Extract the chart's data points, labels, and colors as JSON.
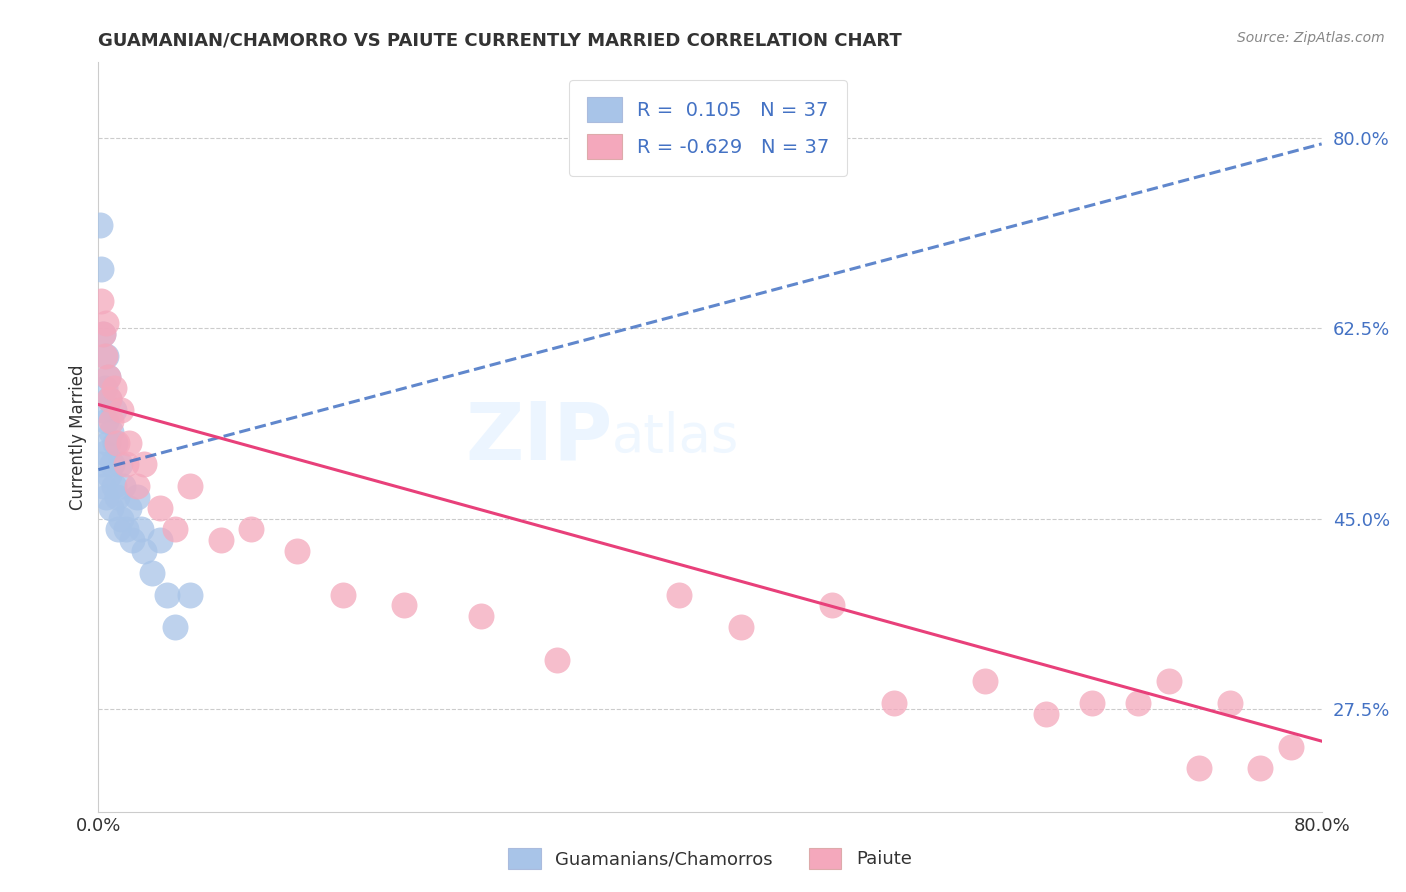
{
  "title": "GUAMANIAN/CHAMORRO VS PAIUTE CURRENTLY MARRIED CORRELATION CHART",
  "source": "Source: ZipAtlas.com",
  "xlabel_blue": "Guamanians/Chamorros",
  "xlabel_pink": "Paiute",
  "ylabel": "Currently Married",
  "xlim": [
    0.0,
    0.8
  ],
  "ylim": [
    0.18,
    0.87
  ],
  "yticks": [
    0.275,
    0.45,
    0.625,
    0.8
  ],
  "ytick_labels": [
    "27.5%",
    "45.0%",
    "62.5%",
    "80.0%"
  ],
  "r_blue": 0.105,
  "n_blue": 37,
  "r_pink": -0.629,
  "n_pink": 37,
  "blue_color": "#A8C4E8",
  "pink_color": "#F4A8BC",
  "blue_line_color": "#4472C4",
  "pink_line_color": "#E8407A",
  "legend_text_color": "#4472C4",
  "watermark_zip": "ZIP",
  "watermark_atlas": "atlas",
  "blue_x": [
    0.001,
    0.002,
    0.002,
    0.003,
    0.003,
    0.003,
    0.004,
    0.004,
    0.005,
    0.005,
    0.005,
    0.006,
    0.006,
    0.007,
    0.007,
    0.008,
    0.008,
    0.009,
    0.01,
    0.01,
    0.011,
    0.012,
    0.013,
    0.014,
    0.015,
    0.016,
    0.018,
    0.02,
    0.022,
    0.025,
    0.028,
    0.03,
    0.035,
    0.04,
    0.045,
    0.05,
    0.06
  ],
  "blue_y": [
    0.72,
    0.5,
    0.68,
    0.62,
    0.55,
    0.48,
    0.57,
    0.51,
    0.6,
    0.54,
    0.47,
    0.58,
    0.52,
    0.56,
    0.49,
    0.53,
    0.46,
    0.5,
    0.55,
    0.48,
    0.52,
    0.47,
    0.44,
    0.5,
    0.45,
    0.48,
    0.44,
    0.46,
    0.43,
    0.47,
    0.44,
    0.42,
    0.4,
    0.43,
    0.38,
    0.35,
    0.38
  ],
  "pink_x": [
    0.002,
    0.003,
    0.004,
    0.005,
    0.006,
    0.007,
    0.008,
    0.01,
    0.012,
    0.015,
    0.018,
    0.02,
    0.025,
    0.03,
    0.04,
    0.05,
    0.06,
    0.08,
    0.1,
    0.13,
    0.16,
    0.2,
    0.25,
    0.3,
    0.38,
    0.42,
    0.48,
    0.52,
    0.58,
    0.62,
    0.65,
    0.68,
    0.7,
    0.72,
    0.74,
    0.76,
    0.78
  ],
  "pink_y": [
    0.65,
    0.62,
    0.6,
    0.63,
    0.58,
    0.56,
    0.54,
    0.57,
    0.52,
    0.55,
    0.5,
    0.52,
    0.48,
    0.5,
    0.46,
    0.44,
    0.48,
    0.43,
    0.44,
    0.42,
    0.38,
    0.37,
    0.36,
    0.32,
    0.38,
    0.35,
    0.37,
    0.28,
    0.3,
    0.27,
    0.28,
    0.28,
    0.3,
    0.22,
    0.28,
    0.22,
    0.24
  ],
  "blue_line_x0": 0.0,
  "blue_line_y0": 0.495,
  "blue_line_x1": 0.8,
  "blue_line_y1": 0.795,
  "pink_line_x0": 0.0,
  "pink_line_y0": 0.555,
  "pink_line_x1": 0.8,
  "pink_line_y1": 0.245
}
